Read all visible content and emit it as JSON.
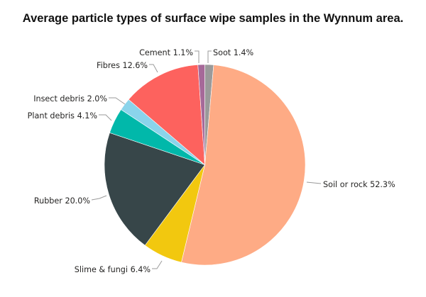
{
  "title": "Average particle types of surface wipe samples in the Wynnum area.",
  "chart_data": {
    "type": "pie",
    "title": "Average particle types of surface wipe samples in the Wynnum area.",
    "start_angle_deg": 0,
    "direction": "clockwise",
    "categories": [
      "Soot",
      "Soil or rock",
      "Slime & fungi",
      "Rubber",
      "Plant debris",
      "Insect debris",
      "Fibres",
      "Cement"
    ],
    "values": [
      1.4,
      52.3,
      6.4,
      20.0,
      4.1,
      2.0,
      12.6,
      1.1
    ],
    "unit": "%",
    "colors": [
      "#9a9a9a",
      "#FEAB85",
      "#F2C80F",
      "#374649",
      "#01B8AA",
      "#8AD4EB",
      "#FD625E",
      "#A66999"
    ],
    "labels": [
      "Soot 1.4%",
      "Soil or rock 52.3%",
      "Slime & fungi 6.4%",
      "Rubber 20.0%",
      "Plant debris 4.1%",
      "Insect debris 2.0%",
      "Fibres 12.6%",
      "Cement 1.1%"
    ],
    "legend": "none (data labels with leader lines)"
  }
}
